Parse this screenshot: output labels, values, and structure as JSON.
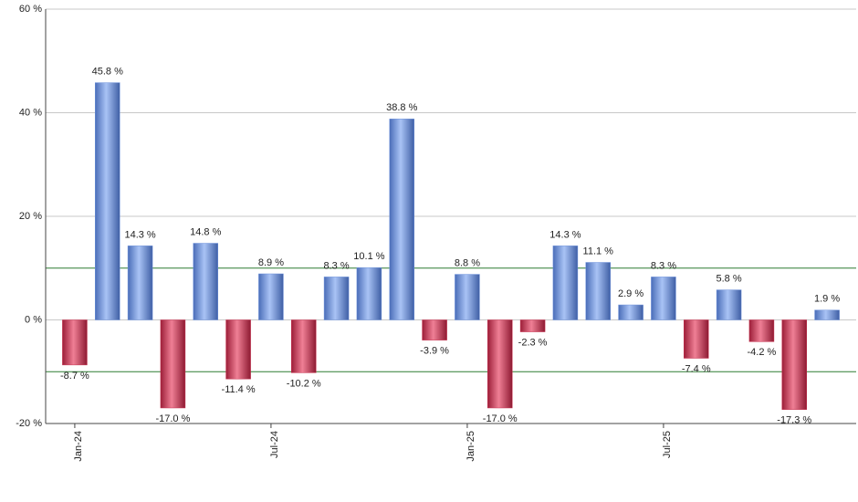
{
  "chart_data": {
    "type": "bar",
    "categories": [
      "Jan-24",
      null,
      null,
      null,
      null,
      null,
      "Jul-24",
      null,
      null,
      null,
      null,
      null,
      "Jan-25",
      null,
      null,
      null,
      null,
      null,
      "Jul-25",
      null,
      null,
      null,
      null,
      null
    ],
    "values": [
      -8.7,
      45.8,
      14.3,
      -17.0,
      14.8,
      -11.4,
      8.9,
      -10.2,
      8.3,
      10.1,
      38.8,
      -3.9,
      8.8,
      -17.0,
      -2.3,
      14.3,
      11.1,
      2.9,
      8.3,
      -7.4,
      5.8,
      -4.2,
      -17.3,
      1.9
    ],
    "value_labels": [
      "-8.7 %",
      "45.8 %",
      "14.3 %",
      "-17.0 %",
      "14.8 %",
      "-11.4 %",
      "8.9 %",
      "-10.2 %",
      "8.3 %",
      "10.1 %",
      "38.8 %",
      "-3.9 %",
      "8.8 %",
      "-17.0 %",
      "-2.3 %",
      "14.3 %",
      "11.1 %",
      "2.9 %",
      "8.3 %",
      "-7.4 %",
      "5.8 %",
      "-4.2 %",
      "-17.3 %",
      "1.9 %"
    ],
    "positive_color": "#6f93dc",
    "negative_color": "#c8304f",
    "ylim": [
      -20,
      60
    ],
    "yticks": [
      {
        "value": -20,
        "label": "-20 %"
      },
      {
        "value": 0,
        "label": "0 %"
      },
      {
        "value": 20,
        "label": "20 %"
      },
      {
        "value": 40,
        "label": "40 %"
      },
      {
        "value": 60,
        "label": "60 %"
      }
    ],
    "reference_lines": [
      10,
      -10
    ],
    "reference_color": "#2e7d32",
    "grid": true
  }
}
